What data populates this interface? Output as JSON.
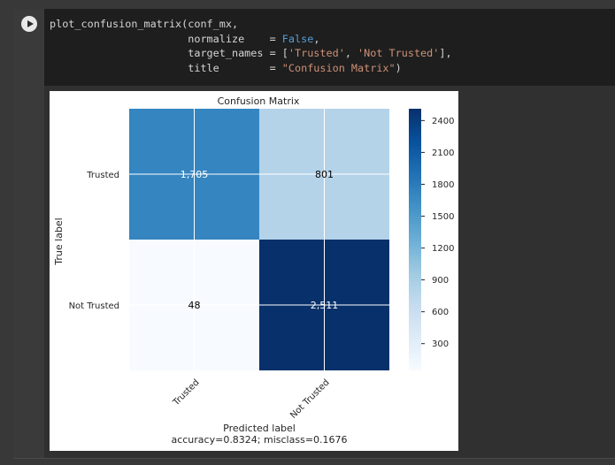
{
  "code_cell": {
    "run_icon": "play-icon",
    "lines": {
      "l1": "plot_confusion_matrix(conf_mx,",
      "l2_arg": "                      normalize    = ",
      "l2_val": "False",
      "l2_end": ",",
      "l3_arg": "                      target_names = [",
      "l3_s1": "'Trusted'",
      "l3_sep": ", ",
      "l3_s2": "'Not Trusted'",
      "l3_end": "],",
      "l4_arg": "                      title        = ",
      "l4_val": "\"Confusion Matrix\"",
      "l4_end": ")"
    }
  },
  "chart_data": {
    "type": "heatmap",
    "title": "Confusion Matrix",
    "xlabel": "Predicted label",
    "ylabel": "True label",
    "subtitle": "accuracy=0.8324; misclass=0.1676",
    "x_tick_labels": [
      "Trusted",
      "Not Trusted"
    ],
    "y_tick_labels": [
      "Trusted",
      "Not Trusted"
    ],
    "matrix": [
      [
        1705,
        801
      ],
      [
        48,
        2511
      ]
    ],
    "cell_labels": [
      [
        "1,705",
        "801"
      ],
      [
        "48",
        "2,511"
      ]
    ],
    "colormap": "Blues",
    "colorbar": {
      "min": 48,
      "max": 2511,
      "ticks": [
        300,
        600,
        900,
        1200,
        1500,
        1800,
        2100,
        2400
      ]
    },
    "grid": true
  }
}
